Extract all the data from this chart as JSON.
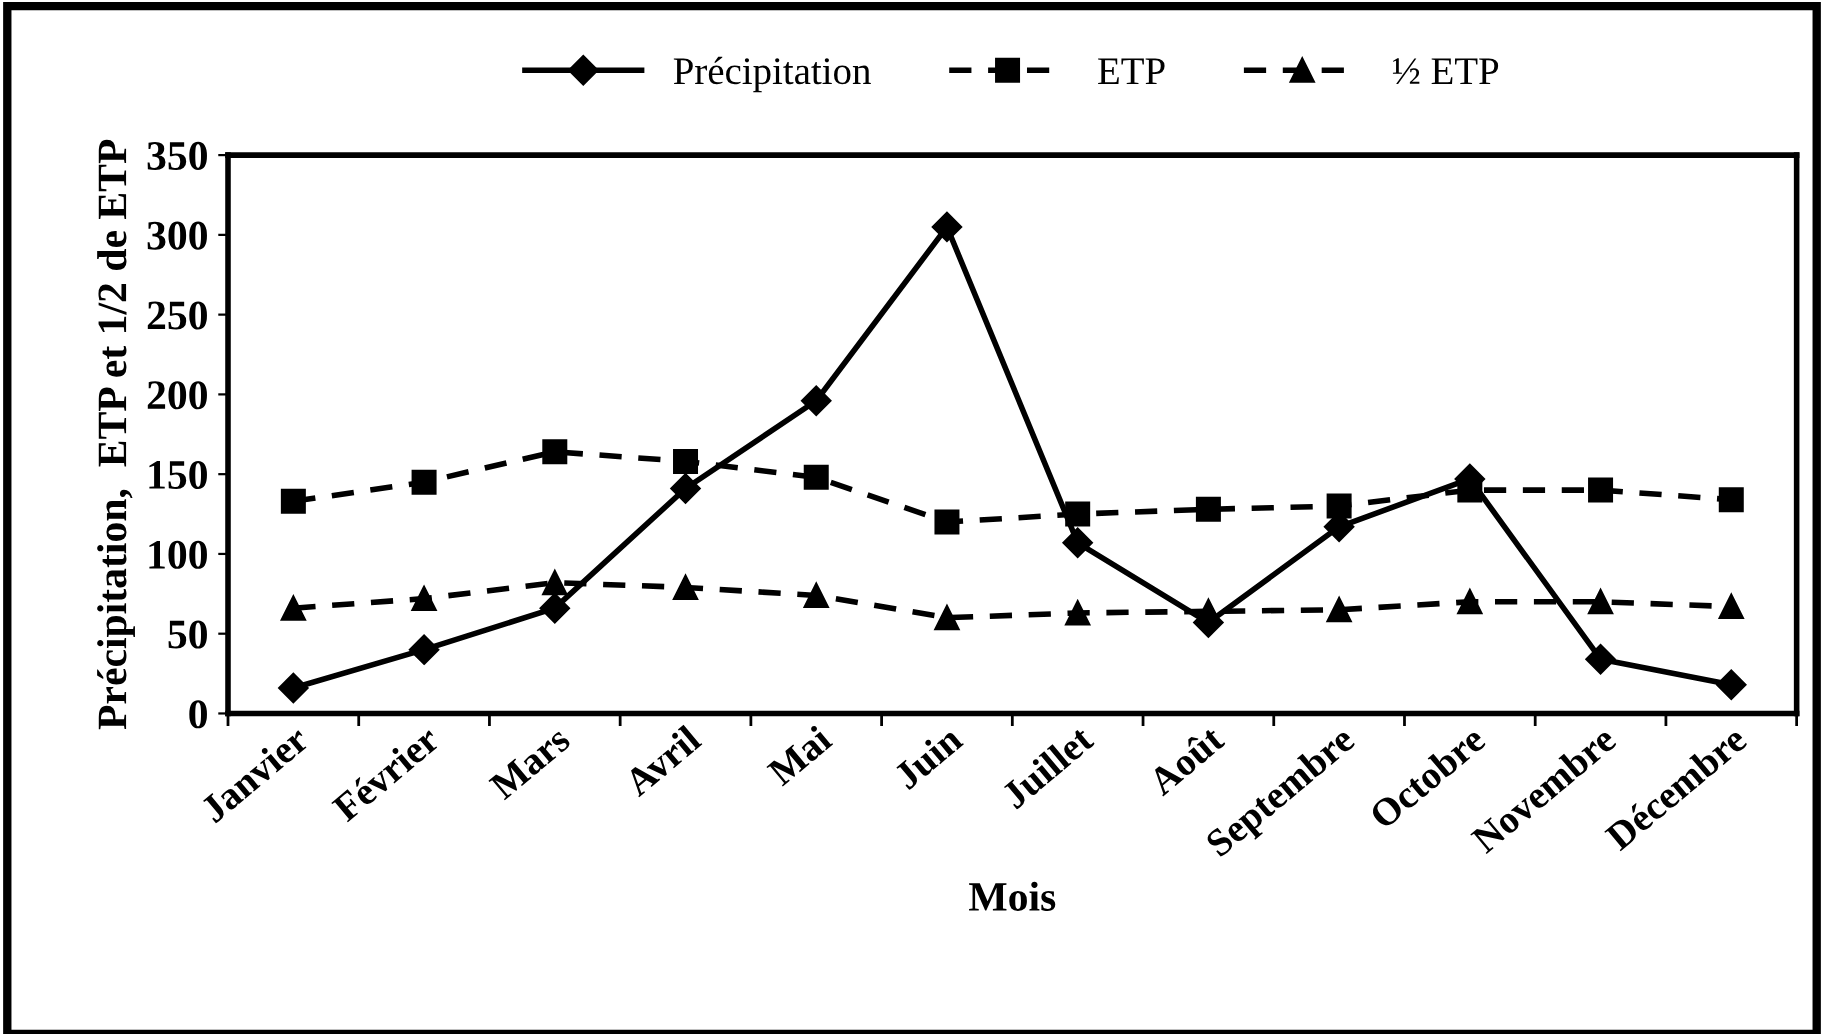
{
  "chart_data": {
    "type": "line",
    "xlabel": "Mois",
    "ylabel": "Précipitation,  ETP et 1/2 de ETP",
    "categories": [
      "Janvier",
      "Février",
      "Mars",
      "Avril",
      "Mai",
      "Juin",
      "Juillet",
      "Août",
      "Septembre",
      "Octobre",
      "Novembre",
      "Décembre"
    ],
    "series": [
      {
        "name": "Précipitation",
        "color": "#000000",
        "marker": "diamond",
        "line_style": "solid",
        "values": [
          16,
          40,
          66,
          141,
          196,
          305,
          107,
          57,
          117,
          147,
          34,
          18
        ]
      },
      {
        "name": "ETP",
        "color": "#000000",
        "marker": "square",
        "line_style": "dashed",
        "values": [
          133,
          145,
          164,
          158,
          148,
          120,
          125,
          128,
          130,
          140,
          140,
          134
        ]
      },
      {
        "name": "½ ETP",
        "color": "#000000",
        "marker": "triangle",
        "line_style": "dashed",
        "values": [
          66,
          72,
          82,
          79,
          74,
          60,
          63,
          64,
          65,
          70,
          70,
          67
        ]
      }
    ],
    "ylim": [
      0,
      350
    ],
    "yticks": [
      0,
      50,
      100,
      150,
      200,
      250,
      300,
      350
    ],
    "grid": false,
    "legend": "top"
  }
}
